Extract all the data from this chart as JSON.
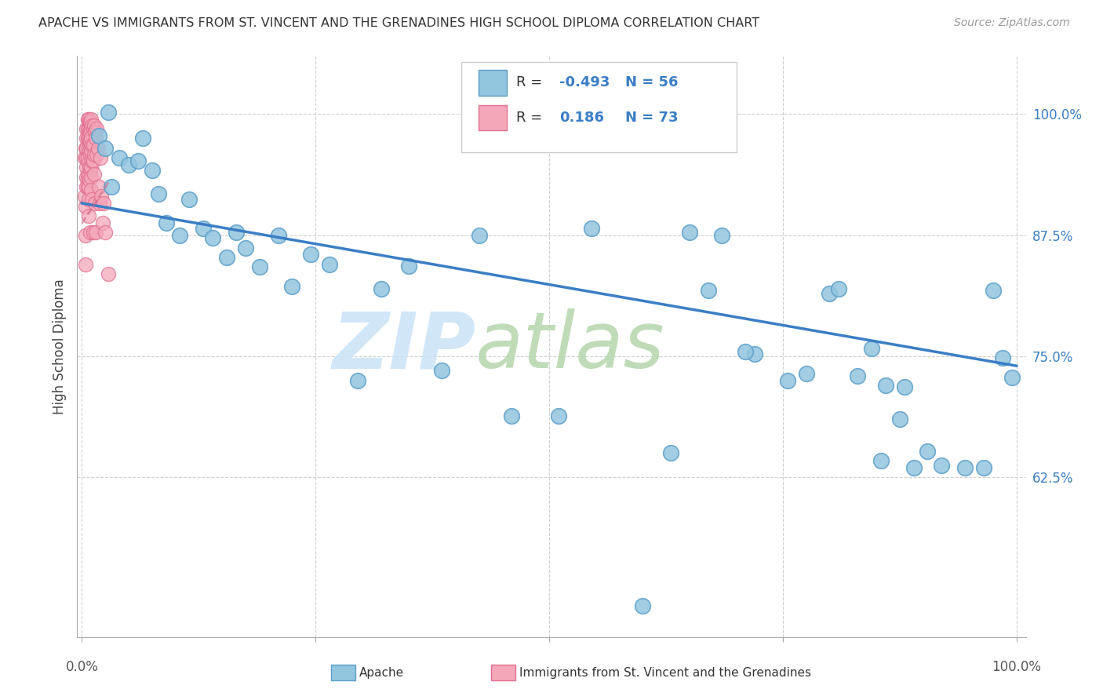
{
  "title": "APACHE VS IMMIGRANTS FROM ST. VINCENT AND THE GRENADINES HIGH SCHOOL DIPLOMA CORRELATION CHART",
  "source": "Source: ZipAtlas.com",
  "ylabel": "High School Diploma",
  "ytick_labels": [
    "100.0%",
    "87.5%",
    "75.0%",
    "62.5%"
  ],
  "ytick_values": [
    1.0,
    0.875,
    0.75,
    0.625
  ],
  "legend_r1": "-0.493",
  "legend_n1": "56",
  "legend_r2": "0.186",
  "legend_n2": "73",
  "blue_color": "#92c5de",
  "blue_edge": "#5b9ec9",
  "pink_color": "#f4a7b9",
  "pink_edge": "#e07090",
  "line_color": "#3a7ec6",
  "apache_intercept": 0.908,
  "apache_slope": -0.168,
  "apache_x": [
    0.018,
    0.025,
    0.028,
    0.032,
    0.04,
    0.05,
    0.06,
    0.065,
    0.075,
    0.082,
    0.09,
    0.105,
    0.115,
    0.13,
    0.14,
    0.155,
    0.165,
    0.175,
    0.19,
    0.21,
    0.225,
    0.245,
    0.265,
    0.295,
    0.32,
    0.35,
    0.385,
    0.425,
    0.46,
    0.51,
    0.545,
    0.6,
    0.65,
    0.685,
    0.72,
    0.755,
    0.775,
    0.8,
    0.83,
    0.855,
    0.875,
    0.89,
    0.905,
    0.92,
    0.945,
    0.965,
    0.975,
    0.985,
    0.995,
    0.63,
    0.67,
    0.71,
    0.81,
    0.845,
    0.86,
    0.88
  ],
  "apache_y": [
    0.978,
    0.965,
    1.002,
    0.925,
    0.955,
    0.948,
    0.952,
    0.975,
    0.942,
    0.918,
    0.888,
    0.875,
    0.912,
    0.882,
    0.872,
    0.852,
    0.878,
    0.862,
    0.842,
    0.875,
    0.822,
    0.855,
    0.845,
    0.725,
    0.82,
    0.843,
    0.735,
    0.875,
    0.688,
    0.688,
    0.882,
    0.492,
    0.878,
    0.875,
    0.752,
    0.725,
    0.732,
    0.815,
    0.73,
    0.642,
    0.685,
    0.635,
    0.652,
    0.637,
    0.635,
    0.635,
    0.818,
    0.748,
    0.728,
    0.65,
    0.818,
    0.755,
    0.82,
    0.758,
    0.72,
    0.718
  ],
  "svg_x": [
    0.003,
    0.003,
    0.004,
    0.004,
    0.004,
    0.004,
    0.005,
    0.005,
    0.005,
    0.005,
    0.005,
    0.005,
    0.005,
    0.006,
    0.006,
    0.006,
    0.006,
    0.006,
    0.006,
    0.007,
    0.007,
    0.007,
    0.007,
    0.007,
    0.007,
    0.007,
    0.007,
    0.007,
    0.008,
    0.008,
    0.008,
    0.008,
    0.008,
    0.008,
    0.009,
    0.009,
    0.009,
    0.009,
    0.009,
    0.009,
    0.01,
    0.01,
    0.01,
    0.01,
    0.01,
    0.01,
    0.01,
    0.011,
    0.011,
    0.011,
    0.011,
    0.012,
    0.012,
    0.012,
    0.012,
    0.013,
    0.013,
    0.013,
    0.014,
    0.014,
    0.015,
    0.015,
    0.016,
    0.016,
    0.017,
    0.018,
    0.019,
    0.02,
    0.021,
    0.022,
    0.023,
    0.025,
    0.028
  ],
  "svg_y": [
    0.955,
    0.915,
    0.965,
    0.905,
    0.875,
    0.845,
    0.985,
    0.975,
    0.965,
    0.955,
    0.945,
    0.935,
    0.925,
    0.995,
    0.985,
    0.975,
    0.955,
    0.935,
    0.925,
    0.995,
    0.985,
    0.975,
    0.965,
    0.95,
    0.938,
    0.925,
    0.912,
    0.895,
    0.992,
    0.982,
    0.972,
    0.962,
    0.945,
    0.932,
    0.992,
    0.982,
    0.972,
    0.958,
    0.942,
    0.878,
    0.995,
    0.985,
    0.975,
    0.962,
    0.945,
    0.935,
    0.922,
    0.988,
    0.968,
    0.952,
    0.912,
    0.985,
    0.968,
    0.952,
    0.878,
    0.988,
    0.958,
    0.938,
    0.982,
    0.908,
    0.975,
    0.878,
    0.985,
    0.958,
    0.965,
    0.925,
    0.908,
    0.955,
    0.915,
    0.888,
    0.908,
    0.878,
    0.835
  ],
  "svg_slope": 1.5,
  "svg_intercept": 0.887,
  "grid_color": "#d0d0d0",
  "xtick_positions": [
    0.0,
    0.25,
    0.5,
    0.75,
    1.0
  ],
  "xlim": [
    -0.005,
    1.01
  ],
  "ylim": [
    0.46,
    1.06
  ]
}
